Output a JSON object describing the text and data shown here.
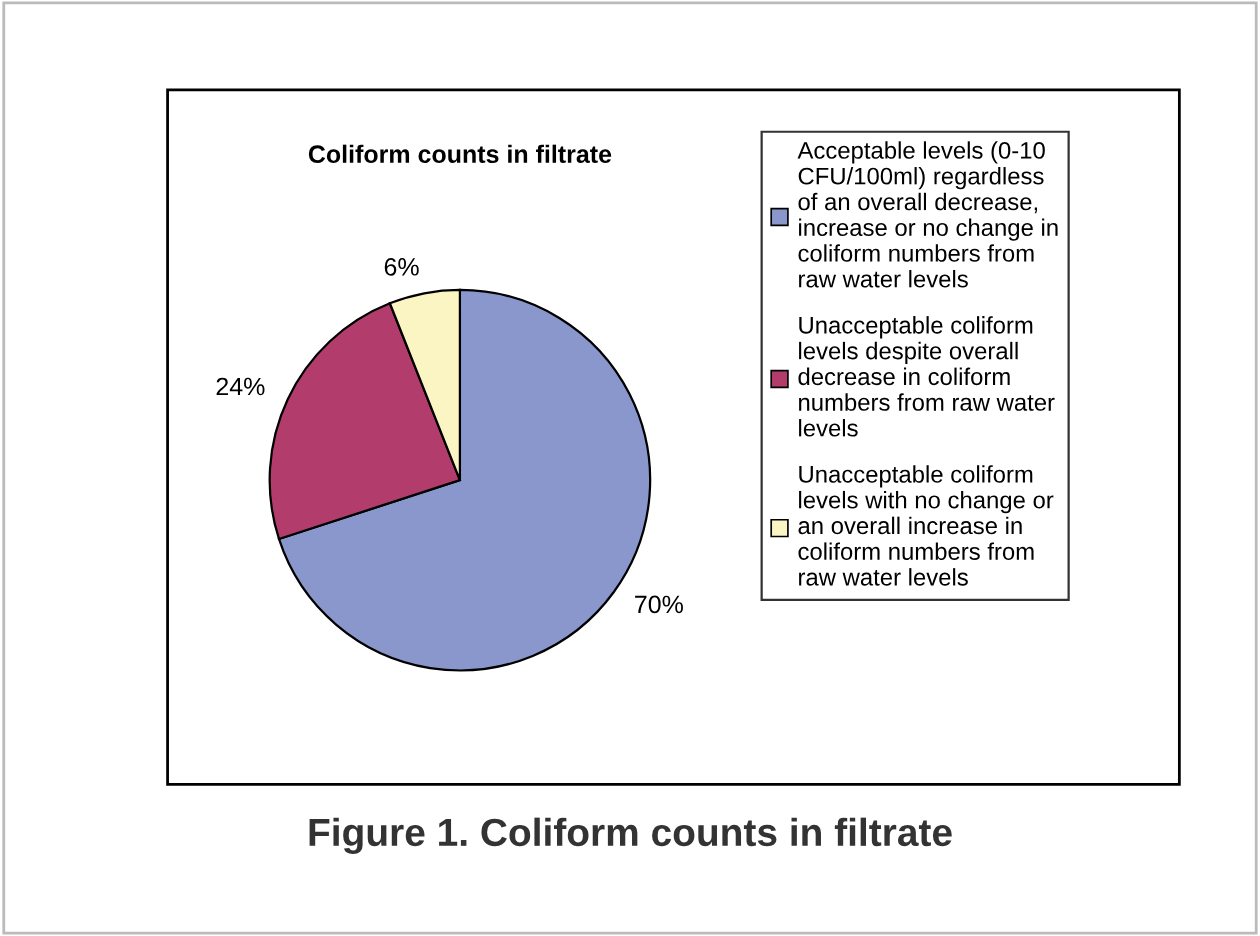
{
  "chart_data": {
    "type": "pie",
    "title": "Coliform counts in filtrate",
    "categories": [
      "Acceptable levels (0-10\nCFU/100ml) regardless\nof an overall decrease,\nincrease or no change in\ncoliform numbers from\nraw water levels",
      "Unacceptable coliform\nlevels despite overall\ndecrease in coliform\nnumbers from raw water\nlevels",
      "Unacceptable coliform\nlevels with no change or\nan overall increase in\ncoliform numbers from\nraw water levels"
    ],
    "values": [
      70,
      24,
      6
    ],
    "colors": [
      "#8a97cc",
      "#b23d6c",
      "#fbf5c4"
    ],
    "value_labels": [
      "70%",
      "24%",
      "6%"
    ],
    "legend": "right",
    "annotations": [
      "Figure 1. Coliform counts in filtrate"
    ]
  }
}
